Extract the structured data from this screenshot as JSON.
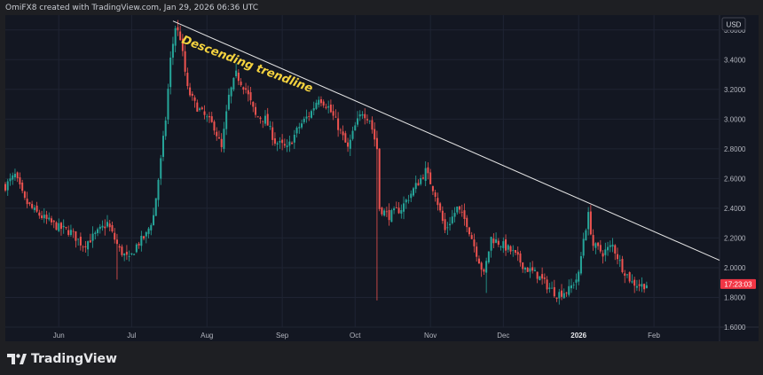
{
  "header": {
    "attribution": "OmiFX8 created with TradingView.com, Jan 29, 2026 06:36 UTC"
  },
  "footer": {
    "brand": "TradingView"
  },
  "colors": {
    "background": "#131722",
    "frame": "#1e1f23",
    "grid": "#1f2433",
    "up": "#26a69a",
    "down": "#ef5350",
    "annotation": "#f5d33f",
    "trendline": "#e6e6e6",
    "price_badge": "#f23645"
  },
  "chart_data": {
    "type": "candlestick",
    "currency_label": "USD",
    "price_badge": "17:23:03",
    "y_ticks": [
      "3.6000",
      "3.4000",
      "3.2000",
      "3.0000",
      "2.8000",
      "2.6000",
      "2.4000",
      "2.2000",
      "2.0000",
      "1.8000",
      "1.6000"
    ],
    "ylim": [
      1.6,
      3.7
    ],
    "x_ticks": [
      "Jun",
      "Jul",
      "Aug",
      "Sep",
      "Oct",
      "Nov",
      "Dec",
      "2026",
      "Feb"
    ],
    "x_tick_dates": [
      "2025-06-01",
      "2025-07-01",
      "2025-08-01",
      "2025-09-01",
      "2025-10-01",
      "2025-11-01",
      "2025-12-01",
      "2026-01-01",
      "2026-02-01"
    ],
    "xlim": [
      "2025-05-10",
      "2026-02-28"
    ],
    "annotation": {
      "text": "Descending trendline"
    },
    "trendline": {
      "start": [
        "2025-07-18",
        3.66
      ],
      "end": [
        "2026-02-28",
        2.05
      ]
    },
    "close_path": [
      [
        "2025-05-10",
        2.55
      ],
      [
        "2025-05-14",
        2.62
      ],
      [
        "2025-05-18",
        2.45
      ],
      [
        "2025-05-22",
        2.38
      ],
      [
        "2025-05-27",
        2.32
      ],
      [
        "2025-06-01",
        2.27
      ],
      [
        "2025-06-06",
        2.24
      ],
      [
        "2025-06-11",
        2.15
      ],
      [
        "2025-06-16",
        2.22
      ],
      [
        "2025-06-21",
        2.3
      ],
      [
        "2025-06-26",
        2.12
      ],
      [
        "2025-06-30",
        2.05
      ],
      [
        "2025-07-03",
        2.15
      ],
      [
        "2025-07-07",
        2.22
      ],
      [
        "2025-07-10",
        2.35
      ],
      [
        "2025-07-13",
        2.72
      ],
      [
        "2025-07-15",
        3.0
      ],
      [
        "2025-07-17",
        3.4
      ],
      [
        "2025-07-19",
        3.62
      ],
      [
        "2025-07-21",
        3.55
      ],
      [
        "2025-07-24",
        3.2
      ],
      [
        "2025-07-27",
        3.1
      ],
      [
        "2025-07-31",
        3.02
      ],
      [
        "2025-08-04",
        2.95
      ],
      [
        "2025-08-07",
        2.8
      ],
      [
        "2025-08-10",
        3.15
      ],
      [
        "2025-08-13",
        3.3
      ],
      [
        "2025-08-17",
        3.2
      ],
      [
        "2025-08-21",
        3.02
      ],
      [
        "2025-08-25",
        3.0
      ],
      [
        "2025-08-29",
        2.85
      ],
      [
        "2025-09-03",
        2.8
      ],
      [
        "2025-09-08",
        2.95
      ],
      [
        "2025-09-13",
        3.05
      ],
      [
        "2025-09-16",
        3.15
      ],
      [
        "2025-09-20",
        3.08
      ],
      [
        "2025-09-24",
        2.95
      ],
      [
        "2025-09-28",
        2.8
      ],
      [
        "2025-10-01",
        2.95
      ],
      [
        "2025-10-04",
        3.05
      ],
      [
        "2025-10-07",
        3.0
      ],
      [
        "2025-10-10",
        2.8
      ],
      [
        "2025-10-11",
        2.4
      ],
      [
        "2025-10-15",
        2.35
      ],
      [
        "2025-10-20",
        2.4
      ],
      [
        "2025-10-26",
        2.55
      ],
      [
        "2025-10-30",
        2.65
      ],
      [
        "2025-11-03",
        2.5
      ],
      [
        "2025-11-07",
        2.25
      ],
      [
        "2025-11-12",
        2.4
      ],
      [
        "2025-11-16",
        2.3
      ],
      [
        "2025-11-20",
        2.1
      ],
      [
        "2025-11-23",
        1.95
      ],
      [
        "2025-11-26",
        2.2
      ],
      [
        "2025-12-01",
        2.15
      ],
      [
        "2025-12-05",
        2.1
      ],
      [
        "2025-12-10",
        2.0
      ],
      [
        "2025-12-15",
        1.95
      ],
      [
        "2025-12-19",
        1.88
      ],
      [
        "2025-12-23",
        1.82
      ],
      [
        "2025-12-28",
        1.85
      ],
      [
        "2026-01-01",
        1.95
      ],
      [
        "2026-01-03",
        2.2
      ],
      [
        "2026-01-05",
        2.35
      ],
      [
        "2026-01-07",
        2.15
      ],
      [
        "2026-01-11",
        2.1
      ],
      [
        "2026-01-15",
        2.15
      ],
      [
        "2026-01-19",
        2.0
      ],
      [
        "2026-01-23",
        1.9
      ],
      [
        "2026-01-27",
        1.88
      ],
      [
        "2026-01-29",
        1.89
      ]
    ],
    "spikes": [
      {
        "date": "2025-10-10",
        "low": 1.78
      },
      {
        "date": "2025-06-25",
        "low": 1.92
      },
      {
        "date": "2025-11-24",
        "low": 1.83
      }
    ],
    "last_date": "2026-01-29"
  }
}
